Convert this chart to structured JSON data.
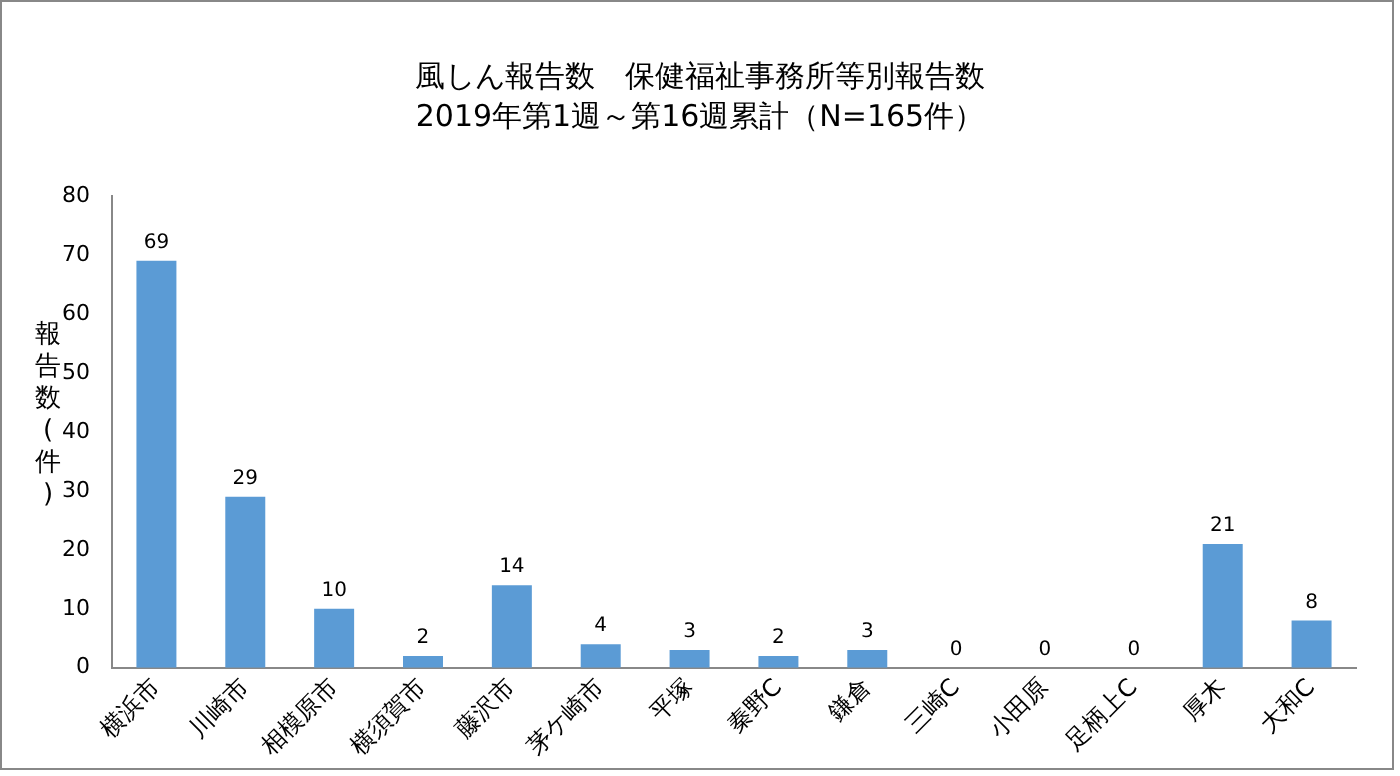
{
  "chart_data": {
    "type": "bar",
    "title": "風しん報告数　保健福祉事務所等別報告数",
    "subtitle": "2019年第1週～第16週累計（N=165件）",
    "ylabel": "報告数(件)",
    "categories": [
      "横浜市",
      "川崎市",
      "相模原市",
      "横須賀市",
      "藤沢市",
      "茅ケ崎市",
      "平塚",
      "秦野C",
      "鎌倉",
      "三崎C",
      "小田原",
      "足柄上C",
      "厚木",
      "大和C"
    ],
    "values": [
      69,
      29,
      10,
      2,
      14,
      4,
      3,
      2,
      3,
      0,
      0,
      0,
      21,
      8
    ],
    "color": "#5b9bd5",
    "ylim": [
      0,
      80
    ],
    "yticks": [
      0,
      10,
      20,
      30,
      40,
      50,
      60,
      70,
      80
    ],
    "grid": false,
    "legend": false,
    "data_labels": true
  }
}
